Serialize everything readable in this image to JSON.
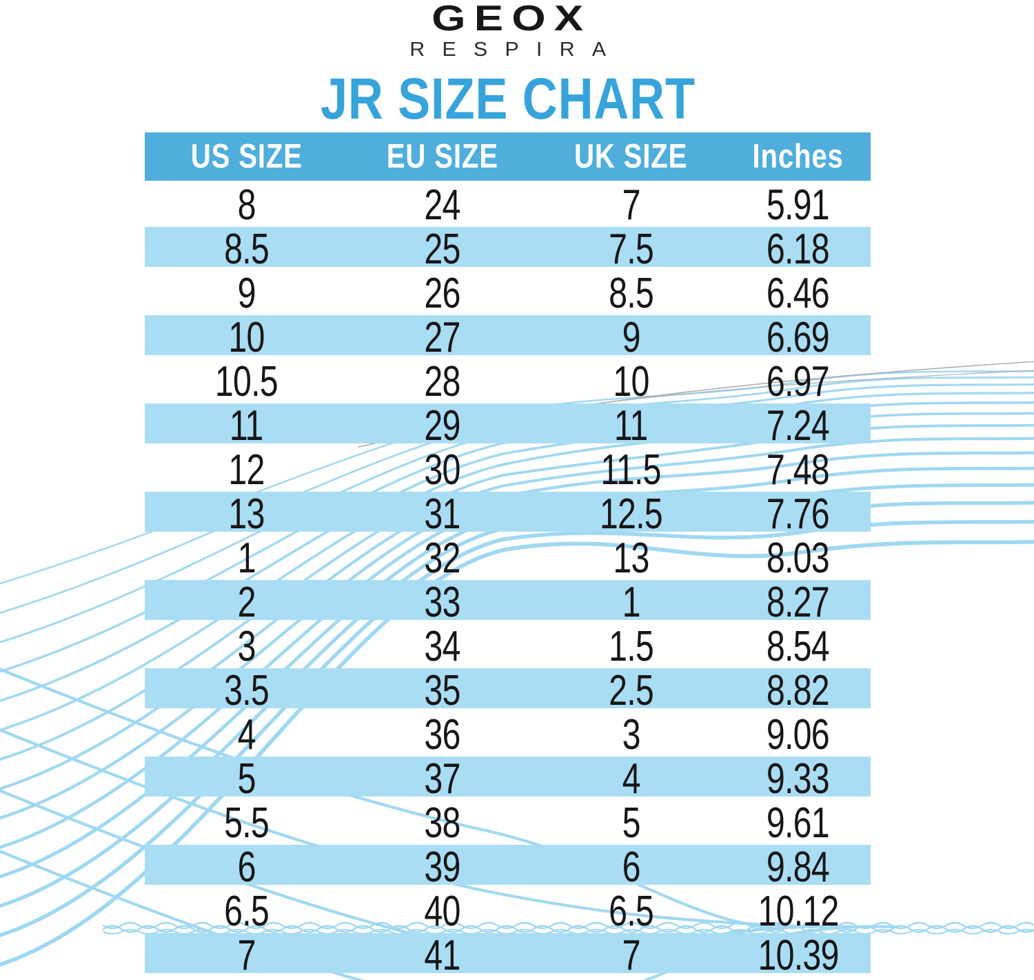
{
  "logo": {
    "brand": "GEOX",
    "tagline": "RESPIRA"
  },
  "chart_data": {
    "type": "table",
    "title": "JR SIZE CHART",
    "columns": [
      "US SIZE",
      "EU SIZE",
      "UK SIZE",
      "Inches"
    ],
    "rows": [
      [
        "8",
        "24",
        "7",
        "5.91"
      ],
      [
        "8.5",
        "25",
        "7.5",
        "6.18"
      ],
      [
        "9",
        "26",
        "8.5",
        "6.46"
      ],
      [
        "10",
        "27",
        "9",
        "6.69"
      ],
      [
        "10.5",
        "28",
        "10",
        "6.97"
      ],
      [
        "11",
        "29",
        "11",
        "7.24"
      ],
      [
        "12",
        "30",
        "11.5",
        "7.48"
      ],
      [
        "13",
        "31",
        "12.5",
        "7.76"
      ],
      [
        "1",
        "32",
        "13",
        "8.03"
      ],
      [
        "2",
        "33",
        "1",
        "8.27"
      ],
      [
        "3",
        "34",
        "1.5",
        "8.54"
      ],
      [
        "3.5",
        "35",
        "2.5",
        "8.82"
      ],
      [
        "4",
        "36",
        "3",
        "9.06"
      ],
      [
        "5",
        "37",
        "4",
        "9.33"
      ],
      [
        "5.5",
        "38",
        "5",
        "9.61"
      ],
      [
        "6",
        "39",
        "6",
        "9.84"
      ],
      [
        "6.5",
        "40",
        "6.5",
        "10.12"
      ],
      [
        "7",
        "41",
        "7",
        "10.39"
      ]
    ],
    "layout": {
      "striped": true,
      "stripe_pattern": "even rows highlighted",
      "header_position": "top"
    }
  },
  "colors": {
    "header_bg": "#4FAEDC",
    "stripe_bg": "#A9DDF4",
    "title": "#36A3DB",
    "text": "#161616",
    "wave": "#A0D8F1",
    "wave_gray": "#ABAEB0"
  }
}
